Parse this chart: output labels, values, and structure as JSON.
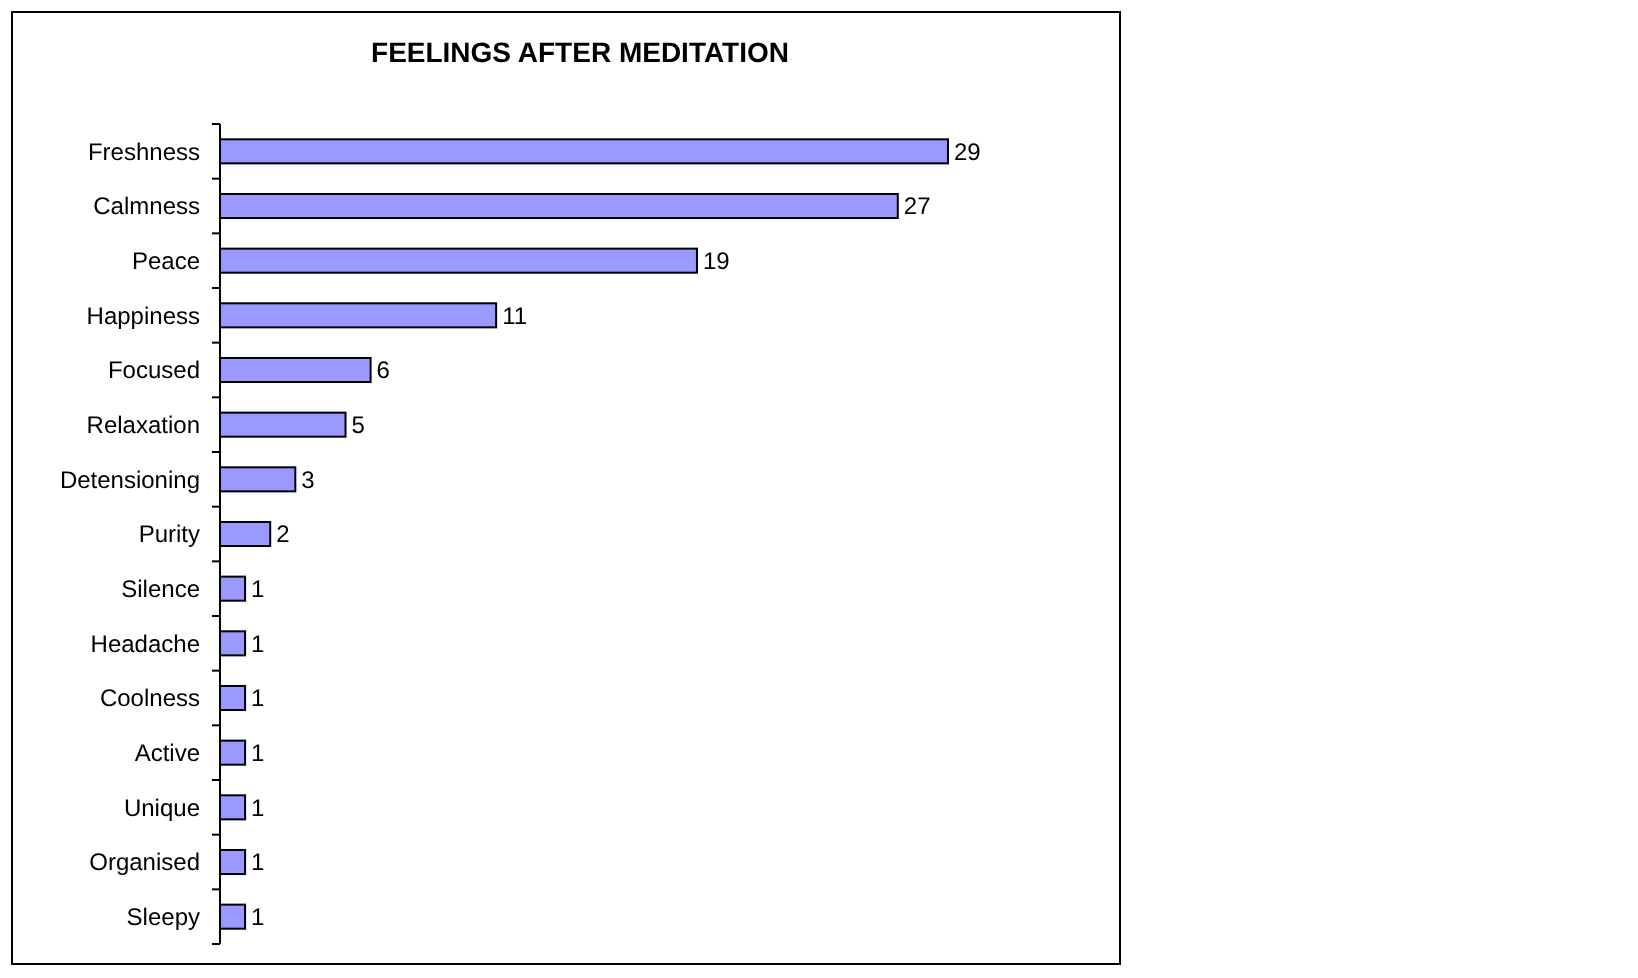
{
  "chart_data": {
    "type": "bar",
    "orientation": "horizontal",
    "title": "FEELINGS AFTER MEDITATION",
    "categories": [
      "Freshness",
      "Calmness",
      "Peace",
      "Happiness",
      "Focused",
      "Relaxation",
      "Detensioning",
      "Purity",
      "Silence",
      "Headache",
      "Coolness",
      "Active",
      "Unique",
      "Organised",
      "Sleepy"
    ],
    "values": [
      29,
      27,
      19,
      11,
      6,
      5,
      3,
      2,
      1,
      1,
      1,
      1,
      1,
      1,
      1
    ],
    "color": "#9999ff",
    "data_labels": true
  }
}
